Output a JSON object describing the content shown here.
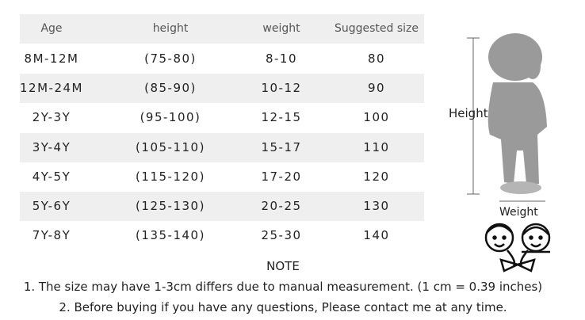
{
  "table": {
    "header": [
      "Age",
      "height",
      "weight",
      "Suggested size"
    ],
    "rows": [
      [
        "8M-12M",
        "(75-80)",
        "8-10",
        "80"
      ],
      [
        "12M-24M",
        "(85-90)",
        "10-12",
        "90"
      ],
      [
        "2Y-3Y",
        "(95-100)",
        "12-15",
        "100"
      ],
      [
        "3Y-4Y",
        "(105-110)",
        "15-17",
        "110"
      ],
      [
        "4Y-5Y",
        "(115-120)",
        "17-20",
        "120"
      ],
      [
        "5Y-6Y",
        "(125-130)",
        "20-25",
        "130"
      ],
      [
        "7Y-8Y",
        "(135-140)",
        "25-30",
        "140"
      ]
    ]
  },
  "notes": {
    "title": "NOTE",
    "lines": [
      "1. The size may have 1-3cm differs due to manual measurement. (1 cm = 0.39 inches)",
      "2. Before buying if you have any questions, Please contact me at any time."
    ]
  },
  "figure": {
    "height_label": "Height",
    "weight_label": "Weight"
  }
}
